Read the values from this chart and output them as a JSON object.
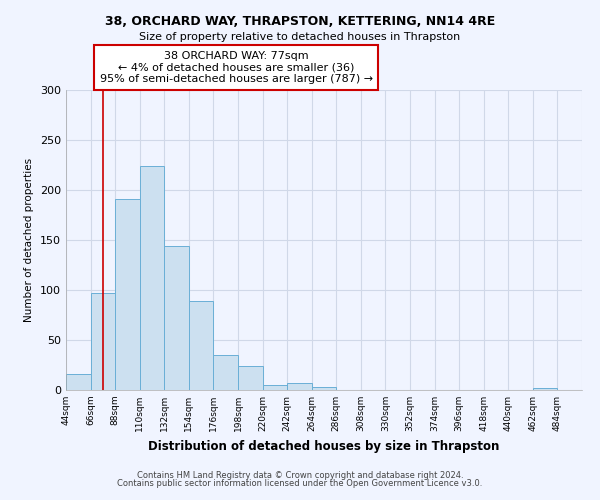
{
  "title1": "38, ORCHARD WAY, THRAPSTON, KETTERING, NN14 4RE",
  "title2": "Size of property relative to detached houses in Thrapston",
  "xlabel": "Distribution of detached houses by size in Thrapston",
  "ylabel": "Number of detached properties",
  "bar_edges": [
    44,
    66,
    88,
    110,
    132,
    154,
    176,
    198,
    220,
    242,
    264,
    286,
    308,
    330,
    352,
    374,
    396,
    418,
    440,
    462,
    484
  ],
  "bar_heights": [
    16,
    97,
    191,
    224,
    144,
    89,
    35,
    24,
    5,
    7,
    3,
    0,
    0,
    0,
    0,
    0,
    0,
    0,
    0,
    2
  ],
  "bar_color": "#cce0f0",
  "bar_edgecolor": "#6aafd6",
  "property_line_x": 77,
  "property_line_color": "#cc0000",
  "annotation_text": "38 ORCHARD WAY: 77sqm\n← 4% of detached houses are smaller (36)\n95% of semi-detached houses are larger (787) →",
  "annotation_box_edgecolor": "#cc0000",
  "annotation_box_facecolor": "#ffffff",
  "ylim": [
    0,
    300
  ],
  "yticks": [
    0,
    50,
    100,
    150,
    200,
    250,
    300
  ],
  "tick_labels": [
    "44sqm",
    "66sqm",
    "88sqm",
    "110sqm",
    "132sqm",
    "154sqm",
    "176sqm",
    "198sqm",
    "220sqm",
    "242sqm",
    "264sqm",
    "286sqm",
    "308sqm",
    "330sqm",
    "352sqm",
    "374sqm",
    "396sqm",
    "418sqm",
    "440sqm",
    "462sqm",
    "484sqm"
  ],
  "footnote1": "Contains HM Land Registry data © Crown copyright and database right 2024.",
  "footnote2": "Contains public sector information licensed under the Open Government Licence v3.0.",
  "bg_color": "#f0f4ff",
  "grid_color": "#d0d8e8"
}
